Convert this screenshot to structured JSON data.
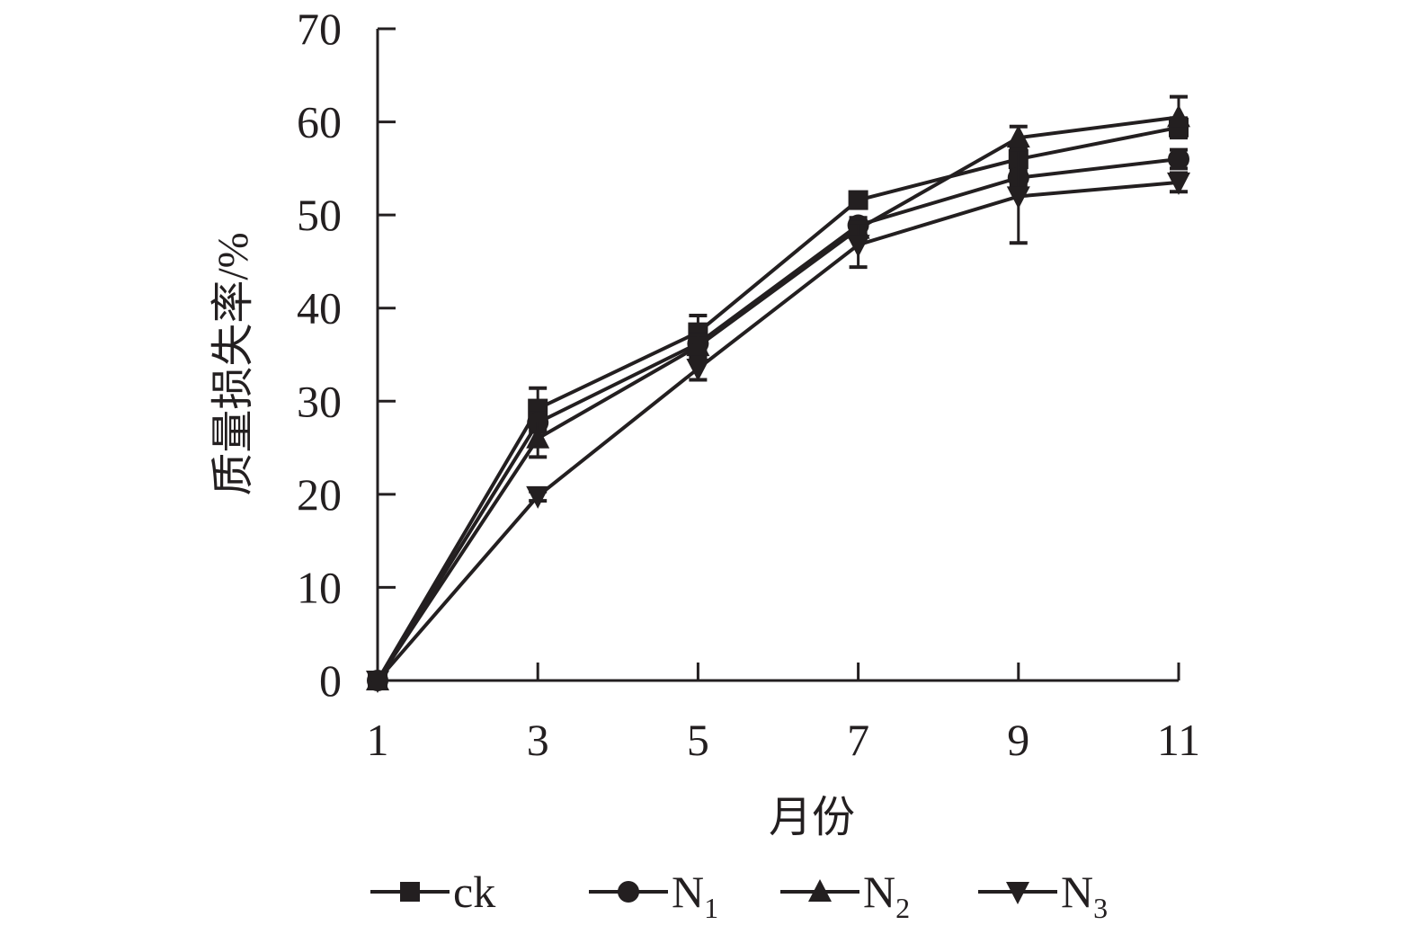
{
  "chart_data": {
    "type": "line",
    "xlabel": "月份",
    "ylabel": "质量损失率/%",
    "x": [
      1,
      3,
      5,
      7,
      9,
      11
    ],
    "xticks": [
      "1",
      "3",
      "5",
      "7",
      "9",
      "11"
    ],
    "yticks": [
      "0",
      "10",
      "20",
      "30",
      "40",
      "50",
      "60",
      "70"
    ],
    "xlim": [
      1,
      11
    ],
    "ylim": [
      0,
      70
    ],
    "grid": false,
    "legend_placement": "bottom",
    "color": "#231f20",
    "series": [
      {
        "name": "ck",
        "sub": "",
        "marker": "square",
        "values": [
          0,
          29.2,
          37.4,
          51.6,
          56.0,
          59.4
        ],
        "errors": [
          0,
          2.2,
          1.8,
          0.5,
          0.8,
          1.0
        ]
      },
      {
        "name": "N",
        "sub": "1",
        "marker": "circle",
        "values": [
          0,
          27.7,
          36.2,
          48.9,
          54.0,
          56.0
        ],
        "errors": [
          0,
          1.0,
          1.0,
          0.8,
          0.8,
          1.0
        ]
      },
      {
        "name": "N",
        "sub": "2",
        "marker": "triangle-up",
        "values": [
          0,
          26.0,
          35.9,
          48.5,
          58.3,
          60.5
        ],
        "errors": [
          0,
          2.0,
          1.2,
          0.8,
          1.2,
          2.2
        ]
      },
      {
        "name": "N",
        "sub": "3",
        "marker": "triangle-down",
        "values": [
          0,
          19.8,
          33.5,
          46.8,
          52.0,
          53.5
        ],
        "errors": [
          0,
          0.5,
          1.2,
          2.4,
          5.0,
          1.0
        ]
      }
    ]
  }
}
